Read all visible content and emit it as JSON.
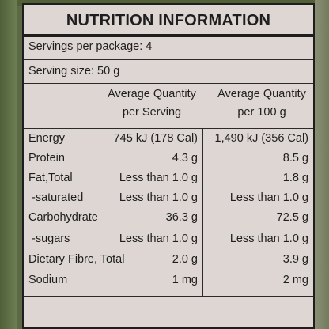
{
  "title": "NUTRITION INFORMATION",
  "servings_per_package": "Servings per package: 4",
  "serving_size": "Serving size: 50 g",
  "columns": {
    "per_serving": [
      "Average Quantity",
      "per Serving"
    ],
    "per_100g": [
      "Average Quantity",
      "per 100 g"
    ]
  },
  "rows": [
    {
      "name": "Energy",
      "per_serving": "745 kJ (178 Cal)",
      "per_100g": "1,490 kJ (356 Cal)"
    },
    {
      "name": "Protein",
      "per_serving": "4.3 g",
      "per_100g": "8.5 g"
    },
    {
      "name": "Fat,Total",
      "per_serving": "Less than 1.0 g",
      "per_100g": "1.8 g"
    },
    {
      "name": "-saturated",
      "per_serving": "Less than 1.0 g",
      "per_100g": "Less than 1.0 g"
    },
    {
      "name": "Carbohydrate",
      "per_serving": "36.3 g",
      "per_100g": "72.5 g"
    },
    {
      "name": "-sugars",
      "per_serving": "Less than 1.0 g",
      "per_100g": "Less than 1.0 g"
    },
    {
      "name": "Dietary Fibre, Total",
      "per_serving": "2.0 g",
      "per_100g": "3.9 g"
    },
    {
      "name": "Sodium",
      "per_serving": "1 mg",
      "per_100g": "2 mg"
    }
  ]
}
